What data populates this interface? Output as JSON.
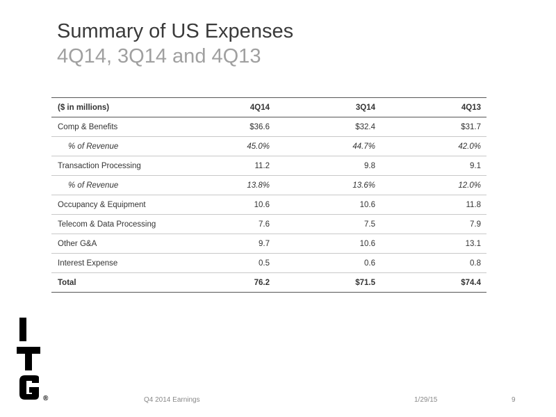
{
  "slide": {
    "title": "Summary of US Expenses",
    "subtitle": "4Q14, 3Q14 and 4Q13"
  },
  "table": {
    "header": {
      "label": "($ in millions)",
      "columns": [
        "4Q14",
        "3Q14",
        "4Q13"
      ]
    },
    "rows": [
      {
        "label": "Comp & Benefits",
        "values": [
          "$36.6",
          "$32.4",
          "$31.7"
        ],
        "style": "normal"
      },
      {
        "label": "% of Revenue",
        "values": [
          "45.0%",
          "44.7%",
          "42.0%"
        ],
        "style": "pct"
      },
      {
        "label": "Transaction Processing",
        "values": [
          "11.2",
          "9.8",
          "9.1"
        ],
        "style": "normal"
      },
      {
        "label": "% of Revenue",
        "values": [
          "13.8%",
          "13.6%",
          "12.0%"
        ],
        "style": "pct"
      },
      {
        "label": "Occupancy & Equipment",
        "values": [
          "10.6",
          "10.6",
          "11.8"
        ],
        "style": "normal"
      },
      {
        "label": "Telecom & Data Processing",
        "values": [
          "7.6",
          "7.5",
          "7.9"
        ],
        "style": "normal"
      },
      {
        "label": "Other G&A",
        "values": [
          "9.7",
          "10.6",
          "13.1"
        ],
        "style": "normal"
      },
      {
        "label": "Interest Expense",
        "values": [
          "0.5",
          "0.6",
          "0.8"
        ],
        "style": "normal"
      }
    ],
    "total": {
      "label": "Total",
      "values": [
        "76.2",
        "$71.5",
        "$74.4"
      ]
    }
  },
  "logo": {
    "text": "ITG",
    "registered": "®",
    "color": "#000000"
  },
  "footer": {
    "left": "Q4 2014 Earnings",
    "date": "1/29/15",
    "page": "9"
  }
}
